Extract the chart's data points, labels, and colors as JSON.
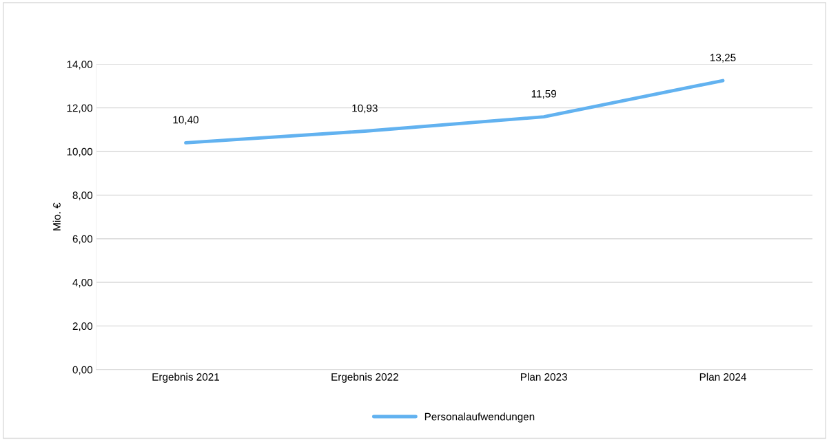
{
  "chart_data": {
    "type": "line",
    "ylabel": "Mio. €",
    "categories": [
      "Ergebnis 2021",
      "Ergebnis 2022",
      "Plan 2023",
      "Plan 2024"
    ],
    "series": [
      {
        "name": "Personalaufwendungen",
        "color": "#62b2f0",
        "values": [
          10.4,
          10.93,
          11.59,
          13.25
        ],
        "value_labels": [
          "10,40",
          "10,93",
          "11,59",
          "13,25"
        ]
      }
    ],
    "ylim": [
      0,
      14
    ],
    "yticks": [
      {
        "value": 0,
        "label": "0,00"
      },
      {
        "value": 2,
        "label": "2,00"
      },
      {
        "value": 4,
        "label": "4,00"
      },
      {
        "value": 6,
        "label": "6,00"
      },
      {
        "value": 8,
        "label": "8,00"
      },
      {
        "value": 10,
        "label": "10,00"
      },
      {
        "value": 12,
        "label": "12,00"
      },
      {
        "value": 14,
        "label": "14,00"
      }
    ],
    "grid": "y",
    "legend": "bottom",
    "marker": "none",
    "line_style": "solid"
  }
}
